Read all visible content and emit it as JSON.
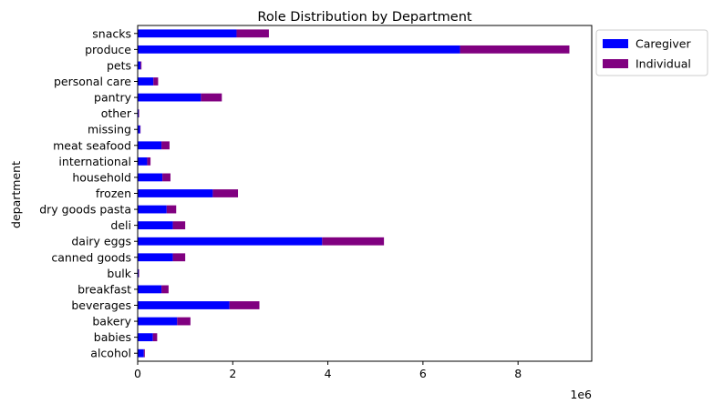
{
  "chart_data": {
    "type": "bar",
    "orientation": "horizontal",
    "stacked": true,
    "title": "Role Distribution by Department",
    "ylabel": "department",
    "xlabel": "",
    "x_offset_label": "1e6",
    "xlim": [
      0,
      9.55
    ],
    "xticks": [
      0,
      2,
      4,
      6,
      8
    ],
    "grid": false,
    "legend_position": "outside-top-right",
    "categories": [
      "alcohol",
      "babies",
      "bakery",
      "beverages",
      "breakfast",
      "bulk",
      "canned goods",
      "dairy eggs",
      "deli",
      "dry goods pasta",
      "frozen",
      "household",
      "international",
      "meat seafood",
      "missing",
      "other",
      "pantry",
      "personal care",
      "pets",
      "produce",
      "snacks"
    ],
    "series": [
      {
        "name": "Caregiver",
        "color": "#0000ff",
        "values": [
          0.13,
          0.32,
          0.83,
          1.93,
          0.5,
          0.02,
          0.74,
          3.88,
          0.74,
          0.61,
          1.58,
          0.52,
          0.2,
          0.5,
          0.05,
          0.02,
          1.33,
          0.33,
          0.06,
          6.78,
          2.08
        ]
      },
      {
        "name": "Individual",
        "color": "#800080",
        "values": [
          0.02,
          0.09,
          0.28,
          0.63,
          0.15,
          0.01,
          0.26,
          1.3,
          0.26,
          0.2,
          0.53,
          0.17,
          0.07,
          0.17,
          0.01,
          0.01,
          0.44,
          0.1,
          0.02,
          2.3,
          0.68
        ]
      }
    ]
  }
}
